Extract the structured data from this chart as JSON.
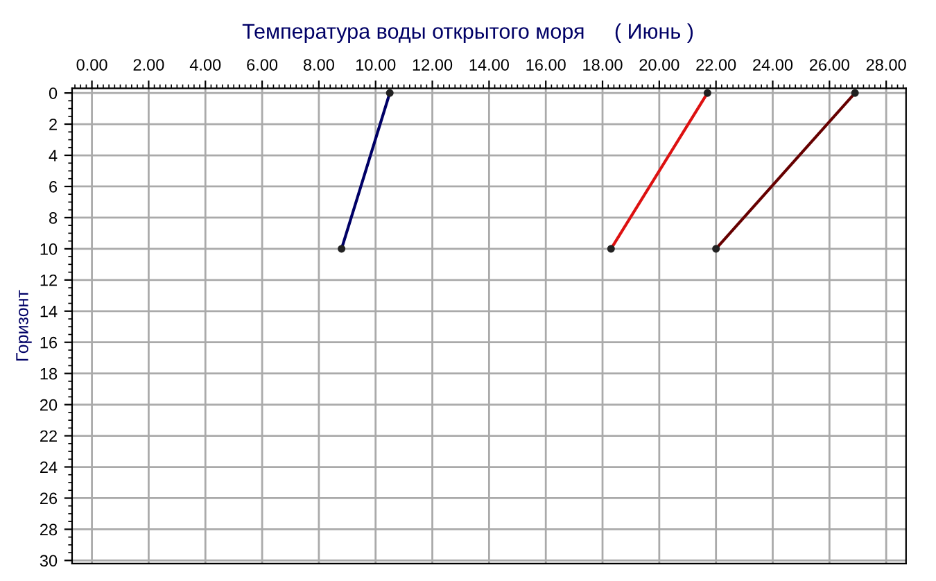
{
  "chart_data": {
    "type": "line",
    "title": "Температура воды открытого моря     ( Июнь )",
    "ylabel": "Горизонт",
    "series": [
      {
        "color": "#000066",
        "x": [
          10.5,
          8.8
        ],
        "values": [
          0,
          10
        ]
      },
      {
        "color": "#dd1111",
        "x": [
          21.7,
          18.3
        ],
        "values": [
          0,
          10
        ]
      },
      {
        "color": "#660000",
        "x": [
          26.9,
          22.0
        ],
        "values": [
          0,
          10
        ]
      }
    ],
    "xlim": [
      -0.7,
      28.7
    ],
    "ylim": [
      30.2,
      -0.3
    ],
    "xticks": [
      {
        "value": 0,
        "label": "0.00"
      },
      {
        "value": 2,
        "label": "2.00"
      },
      {
        "value": 4,
        "label": "4.00"
      },
      {
        "value": 6,
        "label": "6.00"
      },
      {
        "value": 8,
        "label": "8.00"
      },
      {
        "value": 10,
        "label": "10.00"
      },
      {
        "value": 12,
        "label": "12.00"
      },
      {
        "value": 14,
        "label": "14.00"
      },
      {
        "value": 16,
        "label": "16.00"
      },
      {
        "value": 18,
        "label": "18.00"
      },
      {
        "value": 20,
        "label": "20.00"
      },
      {
        "value": 22,
        "label": "22.00"
      },
      {
        "value": 24,
        "label": "24.00"
      },
      {
        "value": 26,
        "label": "26.00"
      },
      {
        "value": 28,
        "label": "28.00"
      }
    ],
    "yticks": [
      0,
      2,
      4,
      6,
      8,
      10,
      12,
      14,
      16,
      18,
      20,
      22,
      24,
      26,
      28,
      30
    ],
    "grid": true,
    "marker": "circle",
    "line_style": "solid",
    "legend": false
  }
}
